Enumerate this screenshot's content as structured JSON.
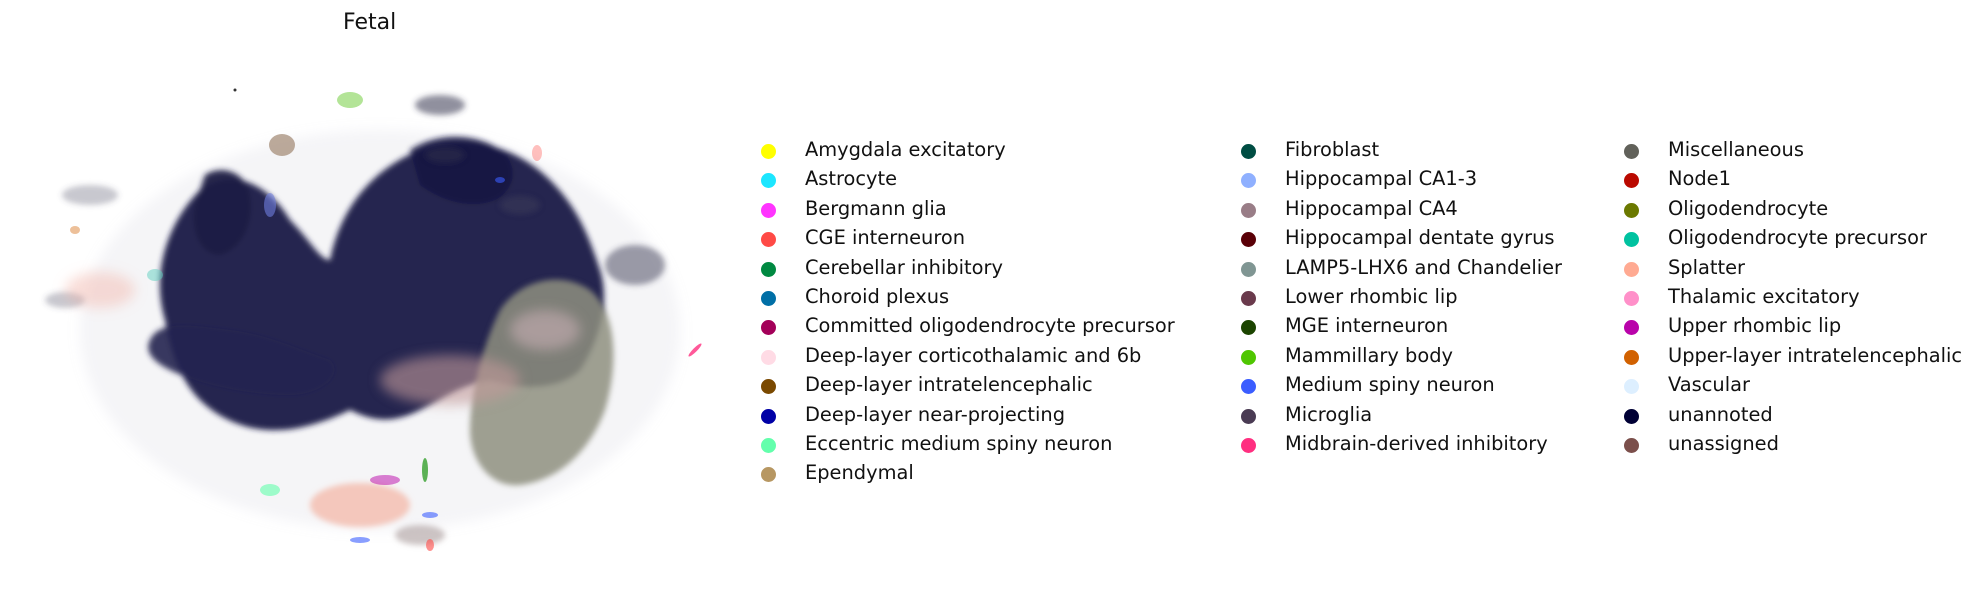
{
  "chart_data": {
    "type": "scatter",
    "title": "Fetal",
    "xlabel": "",
    "ylabel": "",
    "grid": false,
    "axes_visible": false,
    "legend_position": "right",
    "dominant_groups": [
      "unannoted",
      "Deep-layer corticothalamic and 6b",
      "LAMP5-LHX6 and Chandelier"
    ],
    "categories": [
      {
        "label": "Amygdala excitatory",
        "color": "#ffff00"
      },
      {
        "label": "Astrocyte",
        "color": "#1ce6ff"
      },
      {
        "label": "Bergmann glia",
        "color": "#ff34ff"
      },
      {
        "label": "CGE interneuron",
        "color": "#ff4a46"
      },
      {
        "label": "Cerebellar inhibitory",
        "color": "#008941"
      },
      {
        "label": "Choroid plexus",
        "color": "#006fa6"
      },
      {
        "label": "Committed oligodendrocyte precursor",
        "color": "#a30059"
      },
      {
        "label": "Deep-layer corticothalamic and 6b",
        "color": "#ffdbe5"
      },
      {
        "label": "Deep-layer intratelencephalic",
        "color": "#7a4900"
      },
      {
        "label": "Deep-layer near-projecting",
        "color": "#0000a6"
      },
      {
        "label": "Eccentric medium spiny neuron",
        "color": "#63ffac"
      },
      {
        "label": "Ependymal",
        "color": "#b79762"
      },
      {
        "label": "Fibroblast",
        "color": "#004d43"
      },
      {
        "label": "Hippocampal CA1-3",
        "color": "#8fb0ff"
      },
      {
        "label": "Hippocampal CA4",
        "color": "#997d87"
      },
      {
        "label": "Hippocampal dentate gyrus",
        "color": "#5a0007"
      },
      {
        "label": "LAMP5-LHX6 and Chandelier",
        "color": "#809693"
      },
      {
        "label": "Lower rhombic lip",
        "color": "#6a3a4c"
      },
      {
        "label": "MGE interneuron",
        "color": "#1b4400"
      },
      {
        "label": "Mammillary body",
        "color": "#4fc601"
      },
      {
        "label": "Medium spiny neuron",
        "color": "#3b5dff"
      },
      {
        "label": "Microglia",
        "color": "#4a3b53"
      },
      {
        "label": "Midbrain-derived inhibitory",
        "color": "#ff2f80"
      },
      {
        "label": "Miscellaneous",
        "color": "#61615a"
      },
      {
        "label": "Node1",
        "color": "#ba0900"
      },
      {
        "label": "Oligodendrocyte",
        "color": "#6b7900"
      },
      {
        "label": "Oligodendrocyte precursor",
        "color": "#00c2a0"
      },
      {
        "label": "Splatter",
        "color": "#ffaa92"
      },
      {
        "label": "Thalamic excitatory",
        "color": "#ff90c9"
      },
      {
        "label": "Upper rhombic lip",
        "color": "#b903aa"
      },
      {
        "label": "Upper-layer intratelencephalic",
        "color": "#d16100"
      },
      {
        "label": "Vascular",
        "color": "#ddefff"
      },
      {
        "label": "unannoted",
        "color": "#000035"
      },
      {
        "label": "unassigned",
        "color": "#7b4f4b"
      }
    ]
  }
}
